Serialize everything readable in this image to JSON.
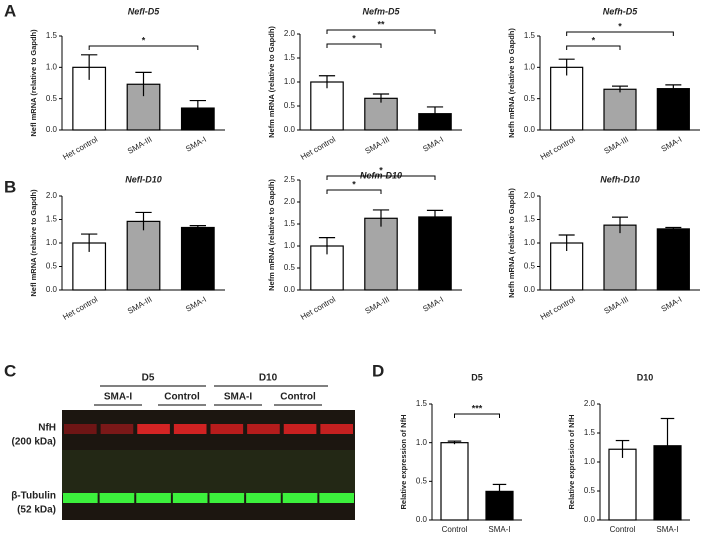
{
  "panel_labels": [
    "A",
    "B",
    "C",
    "D"
  ],
  "blot": {
    "timepoints": [
      "D5",
      "D10"
    ],
    "groups": [
      "SMA-I",
      "Control",
      "SMA-I",
      "Control"
    ],
    "markers": [
      {
        "name": "NfH",
        "size": "(200 kDa)"
      },
      {
        "name": "β-Tubulin",
        "size": "(52 kDa)"
      }
    ]
  },
  "chart_data": [
    {
      "type": "bar",
      "title": "Nefl-D5",
      "y_label": "Nefl mRNA (relative to Gapdh)",
      "categories": [
        "Het control",
        "SMA-III",
        "SMA-I"
      ],
      "values": [
        1.0,
        0.73,
        0.35
      ],
      "errors": [
        0.2,
        0.19,
        0.12
      ],
      "colors": [
        "#ffffff",
        "#a6a6a6",
        "#000000"
      ],
      "ylim": [
        0,
        1.5
      ],
      "yticks": [
        {
          "value": 0,
          "label": "0.0"
        },
        {
          "value": 0.5,
          "label": "0.5"
        },
        {
          "value": 1,
          "label": "1.0"
        },
        {
          "value": 1.5,
          "label": "1.5"
        }
      ],
      "annotations": [
        {
          "text": "*",
          "between": [
            "Het control",
            "SMA-I"
          ]
        }
      ]
    },
    {
      "type": "bar",
      "title": "Nefm-D5",
      "y_label": "Nefm mRNA (relative to Gapdh)",
      "categories": [
        "Het control",
        "SMA-III",
        "SMA-I"
      ],
      "values": [
        1.0,
        0.66,
        0.34
      ],
      "errors": [
        0.13,
        0.09,
        0.14
      ],
      "colors": [
        "#ffffff",
        "#a6a6a6",
        "#000000"
      ],
      "ylim": [
        0,
        2
      ],
      "yticks": [
        {
          "value": 0,
          "label": "0.0"
        },
        {
          "value": 0.5,
          "label": "0.5"
        },
        {
          "value": 1,
          "label": "1.0"
        },
        {
          "value": 1.5,
          "label": "1.5"
        },
        {
          "value": 2,
          "label": "2.0"
        }
      ],
      "annotations": [
        {
          "text": "*",
          "between": [
            "Het control",
            "SMA-III"
          ]
        },
        {
          "text": "**",
          "between": [
            "Het control",
            "SMA-I"
          ]
        }
      ]
    },
    {
      "type": "bar",
      "title": "Nefh-D5",
      "y_label": "Nefh mRNA (relative to Gapdh)",
      "categories": [
        "Het control",
        "SMA-III",
        "SMA-I"
      ],
      "values": [
        1.0,
        0.65,
        0.66
      ],
      "errors": [
        0.13,
        0.05,
        0.06
      ],
      "colors": [
        "#ffffff",
        "#a6a6a6",
        "#000000"
      ],
      "ylim": [
        0,
        1.5
      ],
      "yticks": [
        {
          "value": 0,
          "label": "0.0"
        },
        {
          "value": 0.5,
          "label": "0.5"
        },
        {
          "value": 1,
          "label": "1.0"
        },
        {
          "value": 1.5,
          "label": "1.5"
        }
      ],
      "annotations": [
        {
          "text": "*",
          "between": [
            "Het control",
            "SMA-III"
          ]
        },
        {
          "text": "*",
          "between": [
            "Het control",
            "SMA-I"
          ]
        }
      ]
    },
    {
      "type": "bar",
      "title": "Nefl-D10",
      "y_label": "Nefl mRNA (relative to Gapdh)",
      "categories": [
        "Het control",
        "SMA-III",
        "SMA-I"
      ],
      "values": [
        1.0,
        1.46,
        1.33
      ],
      "errors": [
        0.19,
        0.19,
        0.04
      ],
      "colors": [
        "#ffffff",
        "#a6a6a6",
        "#000000"
      ],
      "ylim": [
        0,
        2
      ],
      "yticks": [
        {
          "value": 0,
          "label": "0.0"
        },
        {
          "value": 0.5,
          "label": "0.5"
        },
        {
          "value": 1,
          "label": "1.0"
        },
        {
          "value": 1.5,
          "label": "1.5"
        },
        {
          "value": 2,
          "label": "2.0"
        }
      ],
      "annotations": []
    },
    {
      "type": "bar",
      "title": "Nefm-D10",
      "y_label": "Nefm mRNA (relative to Gapdh)",
      "categories": [
        "Het control",
        "SMA-III",
        "SMA-I"
      ],
      "values": [
        1.0,
        1.63,
        1.66
      ],
      "errors": [
        0.19,
        0.19,
        0.15
      ],
      "colors": [
        "#ffffff",
        "#a6a6a6",
        "#000000"
      ],
      "ylim": [
        0,
        2.5
      ],
      "yticks": [
        {
          "value": 0,
          "label": "0.0"
        },
        {
          "value": 0.5,
          "label": "0.5"
        },
        {
          "value": 1,
          "label": "1.0"
        },
        {
          "value": 1.5,
          "label": "1.5"
        },
        {
          "value": 2,
          "label": "2.0"
        },
        {
          "value": 2.5,
          "label": "2.5"
        }
      ],
      "annotations": [
        {
          "text": "*",
          "between": [
            "Het control",
            "SMA-III"
          ]
        },
        {
          "text": "*",
          "between": [
            "Het control",
            "SMA-I"
          ]
        }
      ]
    },
    {
      "type": "bar",
      "title": "Nefh-D10",
      "y_label": "Nefh mRNA (relative to Gapdh)",
      "categories": [
        "Het control",
        "SMA-III",
        "SMA-I"
      ],
      "values": [
        1.0,
        1.38,
        1.3
      ],
      "errors": [
        0.17,
        0.17,
        0.03
      ],
      "colors": [
        "#ffffff",
        "#a6a6a6",
        "#000000"
      ],
      "ylim": [
        0,
        2
      ],
      "yticks": [
        {
          "value": 0,
          "label": "0.0"
        },
        {
          "value": 0.5,
          "label": "0.5"
        },
        {
          "value": 1,
          "label": "1.0"
        },
        {
          "value": 1.5,
          "label": "1.5"
        },
        {
          "value": 2,
          "label": "2.0"
        }
      ],
      "annotations": []
    },
    {
      "type": "bar",
      "title": "D5",
      "y_label": "Relative expression of NfH",
      "categories": [
        "Control",
        "SMA-I"
      ],
      "values": [
        1.0,
        0.37
      ],
      "errors": [
        0.02,
        0.09
      ],
      "colors": [
        "#ffffff",
        "#000000"
      ],
      "ylim": [
        0,
        1.5
      ],
      "yticks": [
        {
          "value": 0,
          "label": "0.0"
        },
        {
          "value": 0.5,
          "label": "0.5"
        },
        {
          "value": 1,
          "label": "1.0"
        },
        {
          "value": 1.5,
          "label": "1.5"
        }
      ],
      "annotations": [
        {
          "text": "***",
          "between": [
            "Control",
            "SMA-I"
          ]
        }
      ]
    },
    {
      "type": "bar",
      "title": "D10",
      "y_label": "Relative expression of NfH",
      "categories": [
        "Control",
        "SMA-I"
      ],
      "values": [
        1.22,
        1.28
      ],
      "errors": [
        0.15,
        0.47
      ],
      "colors": [
        "#ffffff",
        "#000000"
      ],
      "ylim": [
        0,
        2
      ],
      "yticks": [
        {
          "value": 0,
          "label": "0.0"
        },
        {
          "value": 0.5,
          "label": "0.5"
        },
        {
          "value": 1,
          "label": "1.0"
        },
        {
          "value": 1.5,
          "label": "1.5"
        },
        {
          "value": 2,
          "label": "2.0"
        }
      ],
      "annotations": []
    }
  ]
}
